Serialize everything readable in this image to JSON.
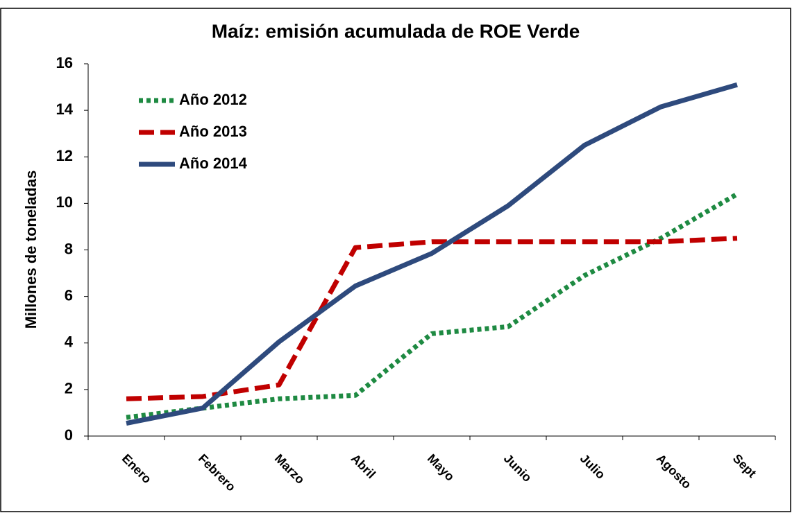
{
  "chart_data": {
    "type": "line",
    "title": "Maíz: emisión acumulada de ROE Verde",
    "y_label": "Millones de toneladas",
    "categories": [
      "Enero",
      "Febrero",
      "Marzo",
      "Abril",
      "Mayo",
      "Junio",
      "Julio",
      "Agosto",
      "Sept"
    ],
    "series": [
      {
        "name": "Año 2012",
        "color": "#1e8a42",
        "style": "dotted",
        "values": [
          0.8,
          1.2,
          1.6,
          1.75,
          4.4,
          4.7,
          6.9,
          8.5,
          10.4
        ]
      },
      {
        "name": "Año 2013",
        "color": "#c00000",
        "style": "dashed",
        "values": [
          1.6,
          1.7,
          2.2,
          8.1,
          8.35,
          8.35,
          8.35,
          8.35,
          8.5
        ]
      },
      {
        "name": "Año 2014",
        "color": "#2e4a7d",
        "style": "solid",
        "values": [
          0.55,
          1.2,
          4.05,
          6.45,
          7.85,
          9.9,
          12.5,
          14.15,
          15.1
        ]
      }
    ],
    "ylim": [
      0,
      16
    ],
    "yticks": [
      0,
      2,
      4,
      6,
      8,
      10,
      12,
      14,
      16
    ],
    "legend": "top-left",
    "grid": false
  }
}
